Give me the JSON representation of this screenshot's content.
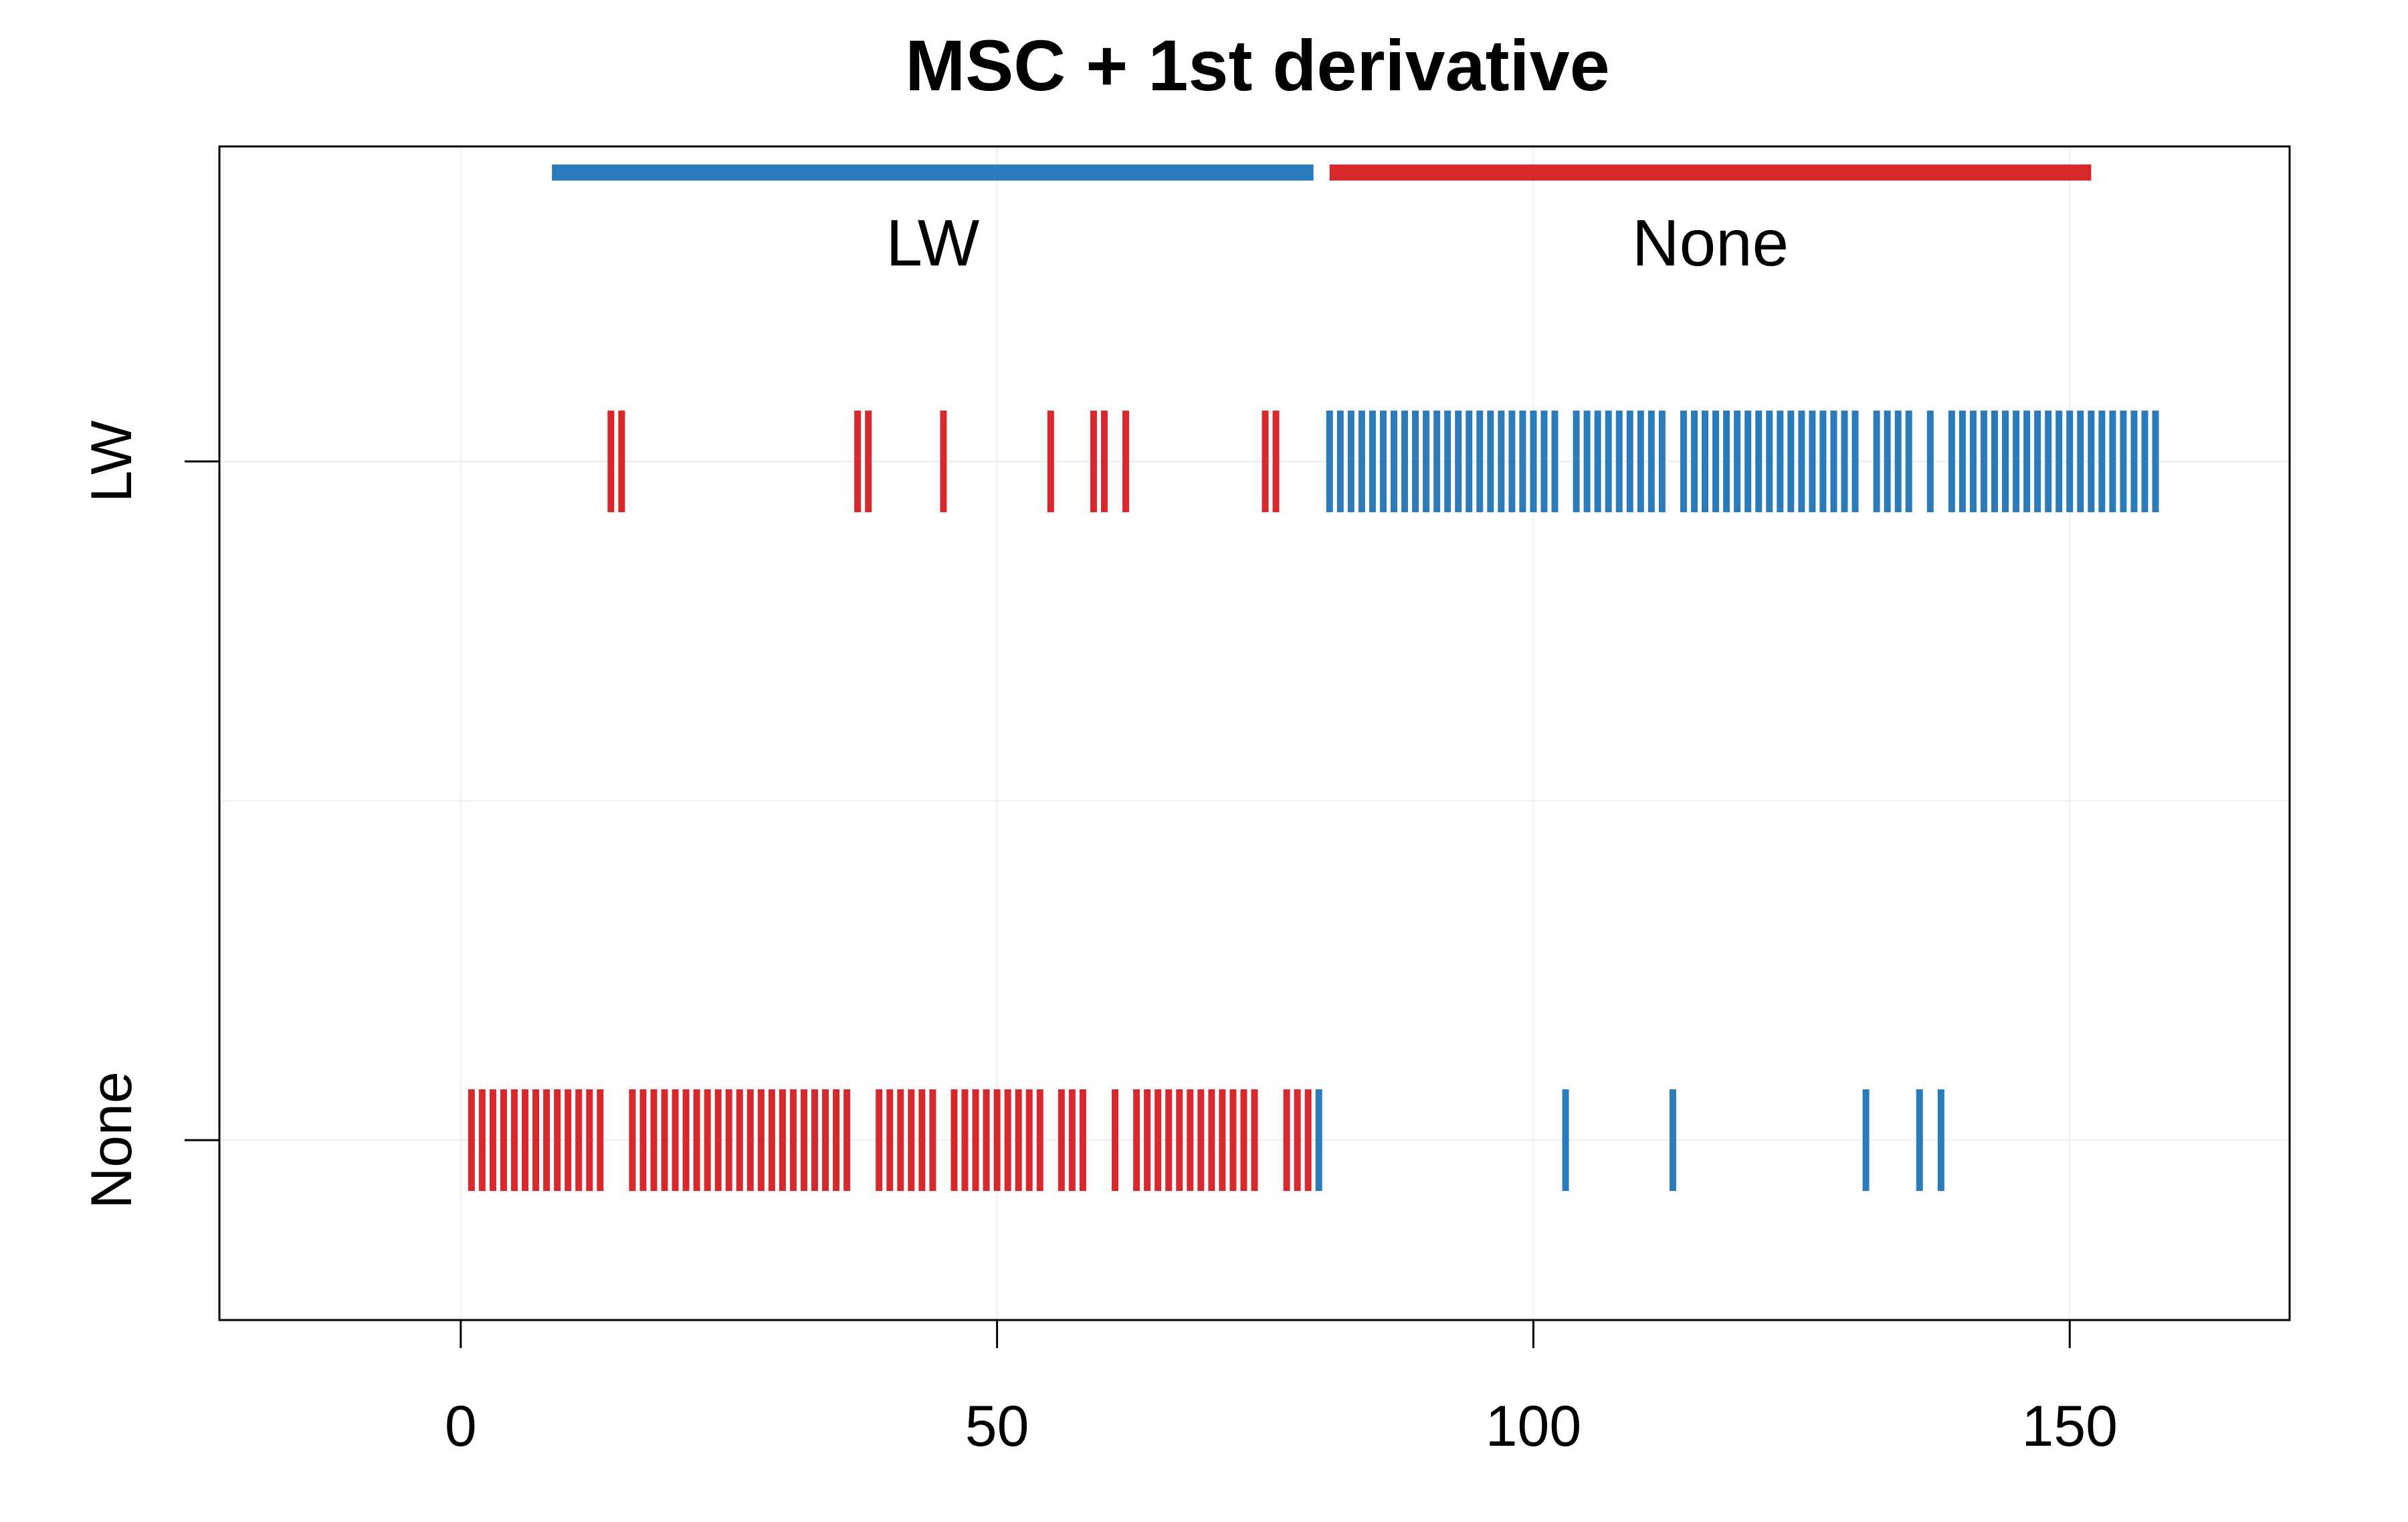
{
  "chart_data": {
    "type": "strip",
    "title": "MSC + 1st derivative",
    "xlabel": "",
    "ylabel": "",
    "xlim": [
      -22.5,
      170.5
    ],
    "x_ticks": [
      0,
      50,
      100,
      150
    ],
    "y_categories": [
      "LW",
      "None"
    ],
    "grid": true,
    "colors": {
      "LW": "#2b7bba",
      "None": "#d7282d"
    },
    "group_bars": [
      {
        "label": "LW",
        "color": "#2b7bba",
        "x_start": 8.5,
        "x_end": 79.5
      },
      {
        "label": "None",
        "color": "#d7282d",
        "x_start": 81,
        "x_end": 152
      }
    ],
    "series": [
      {
        "row": "LW",
        "color": "#d7282d",
        "x": [
          14,
          15,
          37,
          38,
          45,
          55,
          59,
          60,
          62,
          75,
          76
        ]
      },
      {
        "row": "LW",
        "color": "#2b7bba",
        "x": [
          81,
          82,
          83,
          84,
          85,
          86,
          87,
          88,
          89,
          90,
          91,
          92,
          93,
          94,
          95,
          96,
          97,
          98,
          99,
          100,
          101,
          102,
          104,
          105,
          106,
          107,
          108,
          109,
          110,
          111,
          112,
          114,
          115,
          116,
          117,
          118,
          119,
          120,
          121,
          122,
          123,
          124,
          125,
          126,
          127,
          128,
          129,
          130,
          132,
          133,
          134,
          135,
          137,
          139,
          140,
          141,
          142,
          143,
          144,
          145,
          146,
          147,
          148,
          149,
          150,
          151,
          152,
          153,
          154,
          155,
          156,
          157,
          158
        ]
      },
      {
        "row": "None",
        "color": "#d7282d",
        "x": [
          1,
          2,
          3,
          4,
          5,
          6,
          7,
          8,
          9,
          10,
          11,
          12,
          13,
          16,
          17,
          18,
          19,
          20,
          21,
          22,
          23,
          24,
          25,
          26,
          27,
          28,
          29,
          30,
          31,
          32,
          33,
          34,
          35,
          36,
          39,
          40,
          41,
          42,
          43,
          44,
          46,
          47,
          48,
          49,
          50,
          51,
          52,
          53,
          54,
          56,
          57,
          58,
          61,
          63,
          64,
          65,
          66,
          67,
          68,
          69,
          70,
          71,
          72,
          73,
          74,
          77,
          78,
          79
        ]
      },
      {
        "row": "None",
        "color": "#2b7bba",
        "x": [
          80,
          103,
          113,
          131,
          136,
          138
        ]
      }
    ]
  }
}
